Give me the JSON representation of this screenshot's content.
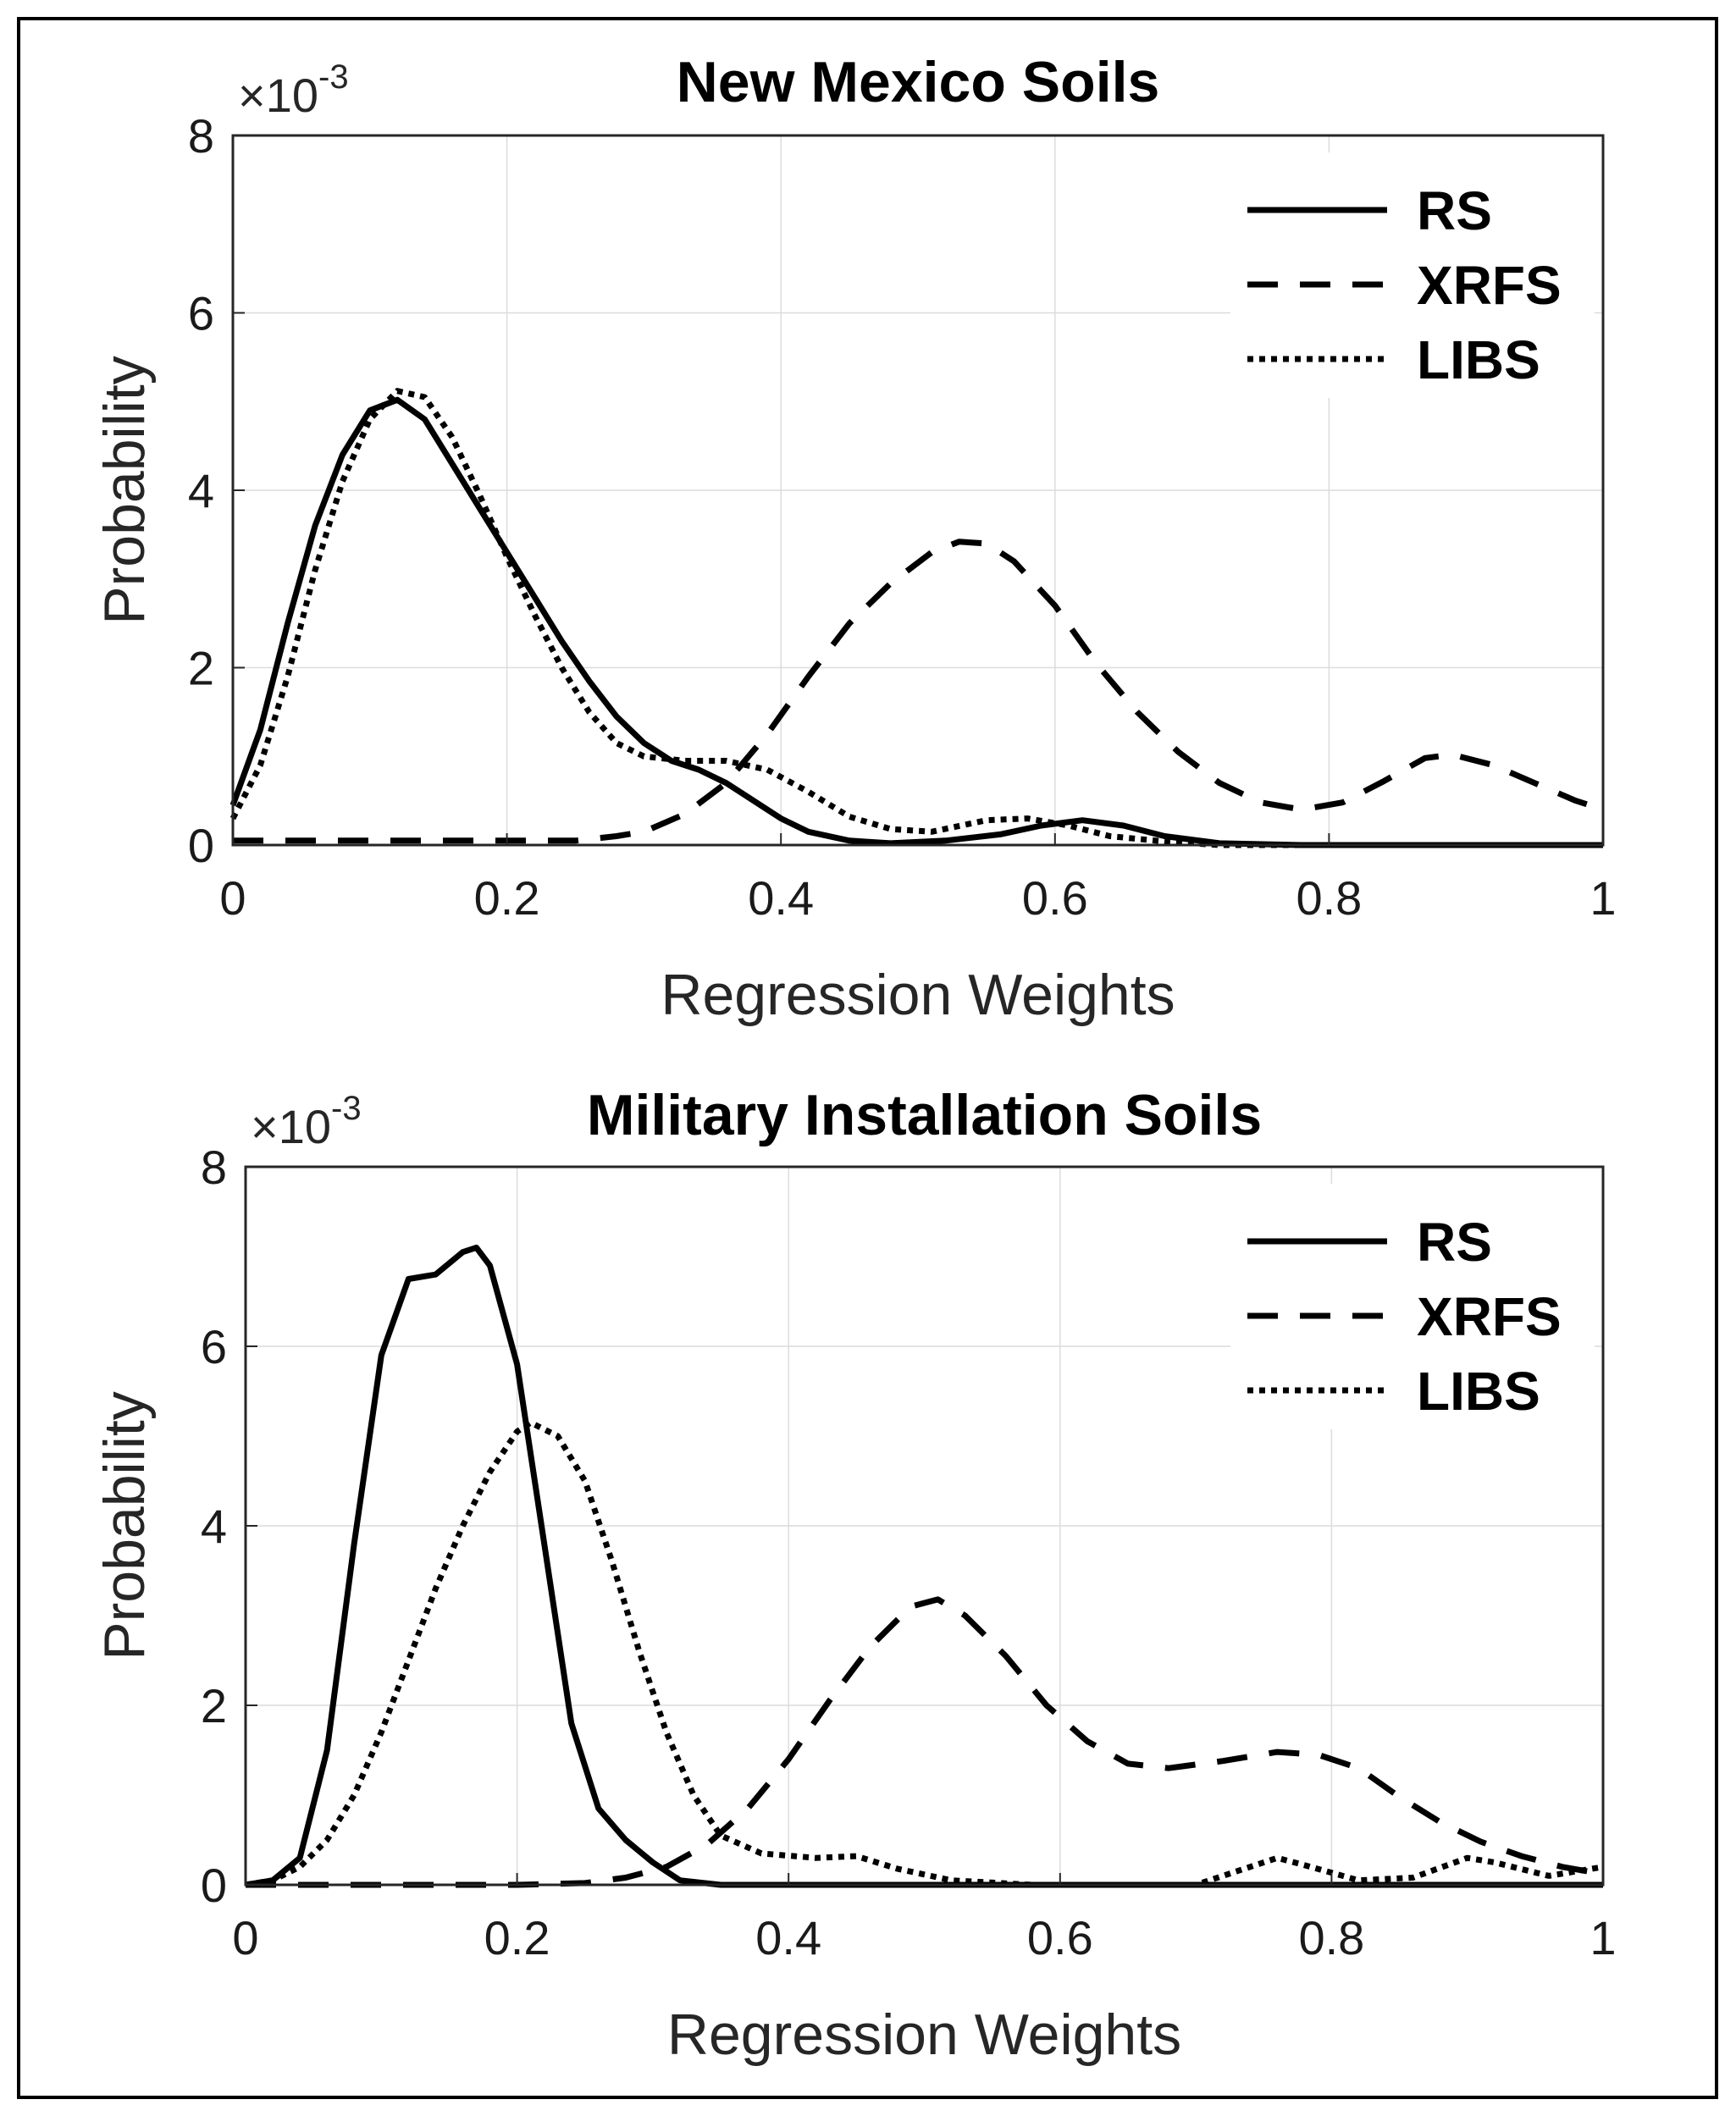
{
  "chart_data": [
    {
      "type": "line",
      "title": "New Mexico Soils",
      "xlabel": "Regression Weights",
      "ylabel": "Probability",
      "y_exponent": "×10",
      "y_exponent_power": "-3",
      "xlim": [
        0,
        1
      ],
      "ylim": [
        0,
        8
      ],
      "xticks": [
        0,
        0.2,
        0.4,
        0.6,
        0.8,
        1
      ],
      "xtick_labels": [
        "0",
        "0.2",
        "0.4",
        "0.6",
        "0.8",
        "1"
      ],
      "yticks": [
        0,
        2,
        4,
        6,
        8
      ],
      "ytick_labels": [
        "0",
        "2",
        "4",
        "6",
        "8"
      ],
      "grid": true,
      "legend_position": "top-right",
      "series": [
        {
          "name": "RS",
          "style": "solid",
          "points": [
            [
              0,
              0.45
            ],
            [
              0.02,
              1.3
            ],
            [
              0.04,
              2.5
            ],
            [
              0.06,
              3.6
            ],
            [
              0.08,
              4.4
            ],
            [
              0.1,
              4.9
            ],
            [
              0.12,
              5.02
            ],
            [
              0.14,
              4.8
            ],
            [
              0.16,
              4.3
            ],
            [
              0.18,
              3.8
            ],
            [
              0.2,
              3.3
            ],
            [
              0.22,
              2.8
            ],
            [
              0.24,
              2.3
            ],
            [
              0.26,
              1.85
            ],
            [
              0.28,
              1.45
            ],
            [
              0.3,
              1.15
            ],
            [
              0.32,
              0.95
            ],
            [
              0.34,
              0.85
            ],
            [
              0.36,
              0.7
            ],
            [
              0.38,
              0.5
            ],
            [
              0.4,
              0.3
            ],
            [
              0.42,
              0.15
            ],
            [
              0.45,
              0.05
            ],
            [
              0.48,
              0.02
            ],
            [
              0.52,
              0.05
            ],
            [
              0.56,
              0.12
            ],
            [
              0.59,
              0.22
            ],
            [
              0.62,
              0.28
            ],
            [
              0.65,
              0.22
            ],
            [
              0.68,
              0.1
            ],
            [
              0.72,
              0.02
            ],
            [
              0.78,
              0.0
            ],
            [
              1,
              0.0
            ]
          ]
        },
        {
          "name": "XRFS",
          "style": "dashed",
          "points": [
            [
              0,
              0.05
            ],
            [
              0.25,
              0.05
            ],
            [
              0.28,
              0.1
            ],
            [
              0.3,
              0.15
            ],
            [
              0.33,
              0.35
            ],
            [
              0.36,
              0.7
            ],
            [
              0.39,
              1.25
            ],
            [
              0.42,
              1.9
            ],
            [
              0.45,
              2.5
            ],
            [
              0.48,
              2.95
            ],
            [
              0.51,
              3.3
            ],
            [
              0.53,
              3.42
            ],
            [
              0.55,
              3.4
            ],
            [
              0.57,
              3.2
            ],
            [
              0.6,
              2.7
            ],
            [
              0.63,
              2.05
            ],
            [
              0.66,
              1.5
            ],
            [
              0.69,
              1.05
            ],
            [
              0.72,
              0.7
            ],
            [
              0.75,
              0.48
            ],
            [
              0.78,
              0.4
            ],
            [
              0.81,
              0.48
            ],
            [
              0.84,
              0.72
            ],
            [
              0.87,
              0.98
            ],
            [
              0.89,
              1.02
            ],
            [
              0.92,
              0.9
            ],
            [
              0.95,
              0.7
            ],
            [
              0.98,
              0.5
            ],
            [
              1,
              0.4
            ]
          ]
        },
        {
          "name": "LIBS",
          "style": "dotted",
          "points": [
            [
              0,
              0.3
            ],
            [
              0.02,
              0.9
            ],
            [
              0.04,
              1.9
            ],
            [
              0.06,
              3.1
            ],
            [
              0.08,
              4.1
            ],
            [
              0.1,
              4.8
            ],
            [
              0.12,
              5.12
            ],
            [
              0.14,
              5.05
            ],
            [
              0.16,
              4.6
            ],
            [
              0.18,
              3.95
            ],
            [
              0.2,
              3.25
            ],
            [
              0.22,
              2.6
            ],
            [
              0.24,
              2.0
            ],
            [
              0.26,
              1.5
            ],
            [
              0.28,
              1.15
            ],
            [
              0.3,
              1.0
            ],
            [
              0.33,
              0.95
            ],
            [
              0.36,
              0.95
            ],
            [
              0.39,
              0.85
            ],
            [
              0.42,
              0.6
            ],
            [
              0.45,
              0.32
            ],
            [
              0.48,
              0.18
            ],
            [
              0.51,
              0.15
            ],
            [
              0.55,
              0.28
            ],
            [
              0.58,
              0.3
            ],
            [
              0.61,
              0.22
            ],
            [
              0.64,
              0.1
            ],
            [
              0.68,
              0.04
            ],
            [
              0.72,
              0.0
            ],
            [
              1,
              0.0
            ]
          ]
        }
      ]
    },
    {
      "type": "line",
      "title": "Military Installation Soils",
      "xlabel": "Regression Weights",
      "ylabel": "Probability",
      "y_exponent": "×10",
      "y_exponent_power": "-3",
      "xlim": [
        0,
        1
      ],
      "ylim": [
        0,
        8
      ],
      "xticks": [
        0,
        0.2,
        0.4,
        0.6,
        0.8,
        1
      ],
      "xtick_labels": [
        "0",
        "0.2",
        "0.4",
        "0.6",
        "0.8",
        "1"
      ],
      "yticks": [
        0,
        2,
        4,
        6,
        8
      ],
      "ytick_labels": [
        "0",
        "2",
        "4",
        "6",
        "8"
      ],
      "grid": true,
      "legend_position": "top-right",
      "series": [
        {
          "name": "RS",
          "style": "solid",
          "points": [
            [
              0,
              0.0
            ],
            [
              0.02,
              0.05
            ],
            [
              0.04,
              0.3
            ],
            [
              0.06,
              1.5
            ],
            [
              0.08,
              3.8
            ],
            [
              0.1,
              5.9
            ],
            [
              0.12,
              6.75
            ],
            [
              0.14,
              6.8
            ],
            [
              0.16,
              7.05
            ],
            [
              0.17,
              7.1
            ],
            [
              0.18,
              6.9
            ],
            [
              0.2,
              5.8
            ],
            [
              0.22,
              3.8
            ],
            [
              0.24,
              1.8
            ],
            [
              0.26,
              0.85
            ],
            [
              0.28,
              0.5
            ],
            [
              0.3,
              0.25
            ],
            [
              0.32,
              0.05
            ],
            [
              0.35,
              0.0
            ],
            [
              1,
              0.0
            ]
          ]
        },
        {
          "name": "XRFS",
          "style": "dashed",
          "points": [
            [
              0,
              0.0
            ],
            [
              0.2,
              0.0
            ],
            [
              0.25,
              0.02
            ],
            [
              0.28,
              0.08
            ],
            [
              0.31,
              0.2
            ],
            [
              0.34,
              0.45
            ],
            [
              0.37,
              0.85
            ],
            [
              0.4,
              1.4
            ],
            [
              0.43,
              2.05
            ],
            [
              0.46,
              2.65
            ],
            [
              0.49,
              3.1
            ],
            [
              0.51,
              3.18
            ],
            [
              0.53,
              3.0
            ],
            [
              0.56,
              2.55
            ],
            [
              0.59,
              2.0
            ],
            [
              0.62,
              1.6
            ],
            [
              0.65,
              1.35
            ],
            [
              0.68,
              1.3
            ],
            [
              0.72,
              1.38
            ],
            [
              0.76,
              1.48
            ],
            [
              0.79,
              1.45
            ],
            [
              0.82,
              1.3
            ],
            [
              0.85,
              0.98
            ],
            [
              0.88,
              0.7
            ],
            [
              0.91,
              0.48
            ],
            [
              0.94,
              0.32
            ],
            [
              0.97,
              0.2
            ],
            [
              1,
              0.12
            ]
          ]
        },
        {
          "name": "LIBS",
          "style": "dotted",
          "points": [
            [
              0,
              0.0
            ],
            [
              0.02,
              0.05
            ],
            [
              0.04,
              0.2
            ],
            [
              0.06,
              0.5
            ],
            [
              0.08,
              1.0
            ],
            [
              0.1,
              1.7
            ],
            [
              0.12,
              2.5
            ],
            [
              0.14,
              3.3
            ],
            [
              0.16,
              4.0
            ],
            [
              0.18,
              4.6
            ],
            [
              0.2,
              5.05
            ],
            [
              0.21,
              5.15
            ],
            [
              0.23,
              5.0
            ],
            [
              0.25,
              4.5
            ],
            [
              0.27,
              3.6
            ],
            [
              0.29,
              2.6
            ],
            [
              0.31,
              1.7
            ],
            [
              0.33,
              1.0
            ],
            [
              0.35,
              0.55
            ],
            [
              0.38,
              0.35
            ],
            [
              0.42,
              0.3
            ],
            [
              0.45,
              0.32
            ],
            [
              0.48,
              0.18
            ],
            [
              0.52,
              0.05
            ],
            [
              0.58,
              0.0
            ],
            [
              0.7,
              0.0
            ],
            [
              0.73,
              0.15
            ],
            [
              0.76,
              0.3
            ],
            [
              0.78,
              0.22
            ],
            [
              0.82,
              0.05
            ],
            [
              0.86,
              0.08
            ],
            [
              0.9,
              0.3
            ],
            [
              0.92,
              0.25
            ],
            [
              0.96,
              0.1
            ],
            [
              1,
              0.2
            ]
          ]
        }
      ]
    }
  ]
}
